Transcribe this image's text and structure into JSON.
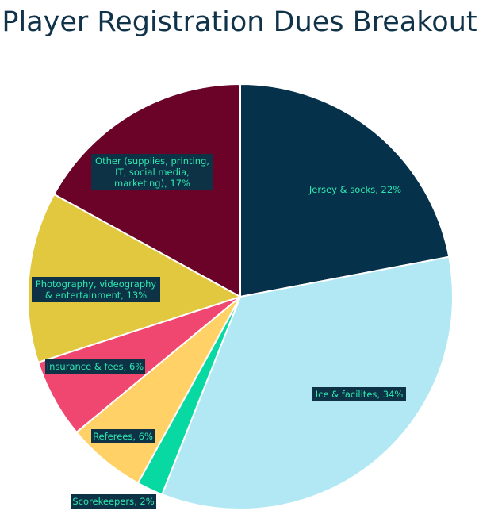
{
  "chart_data": {
    "type": "pie",
    "title": "Player Registration Dues Breakout",
    "start_angle_deg": 0,
    "direction": "clockwise",
    "slices": [
      {
        "label": "Jersey & socks, 22%",
        "value": 22,
        "color": "#05324a"
      },
      {
        "label": "Ice & facilites, 34%",
        "value": 34,
        "color": "#b2e8f4"
      },
      {
        "label": "Scorekeepers, 2%",
        "value": 2,
        "color": "#08d9a2"
      },
      {
        "label": "Referees, 6%",
        "value": 6,
        "color": "#ffd166"
      },
      {
        "label": "Insurance & fees, 6%",
        "value": 6,
        "color": "#ef476f"
      },
      {
        "label": "Photography, videography & entertainment, 13%",
        "value": 13,
        "color": "#e2c83e"
      },
      {
        "label": "Other (supplies, printing, IT, social media, marketing), 17%",
        "value": 17,
        "color": "#6b0329"
      }
    ]
  }
}
